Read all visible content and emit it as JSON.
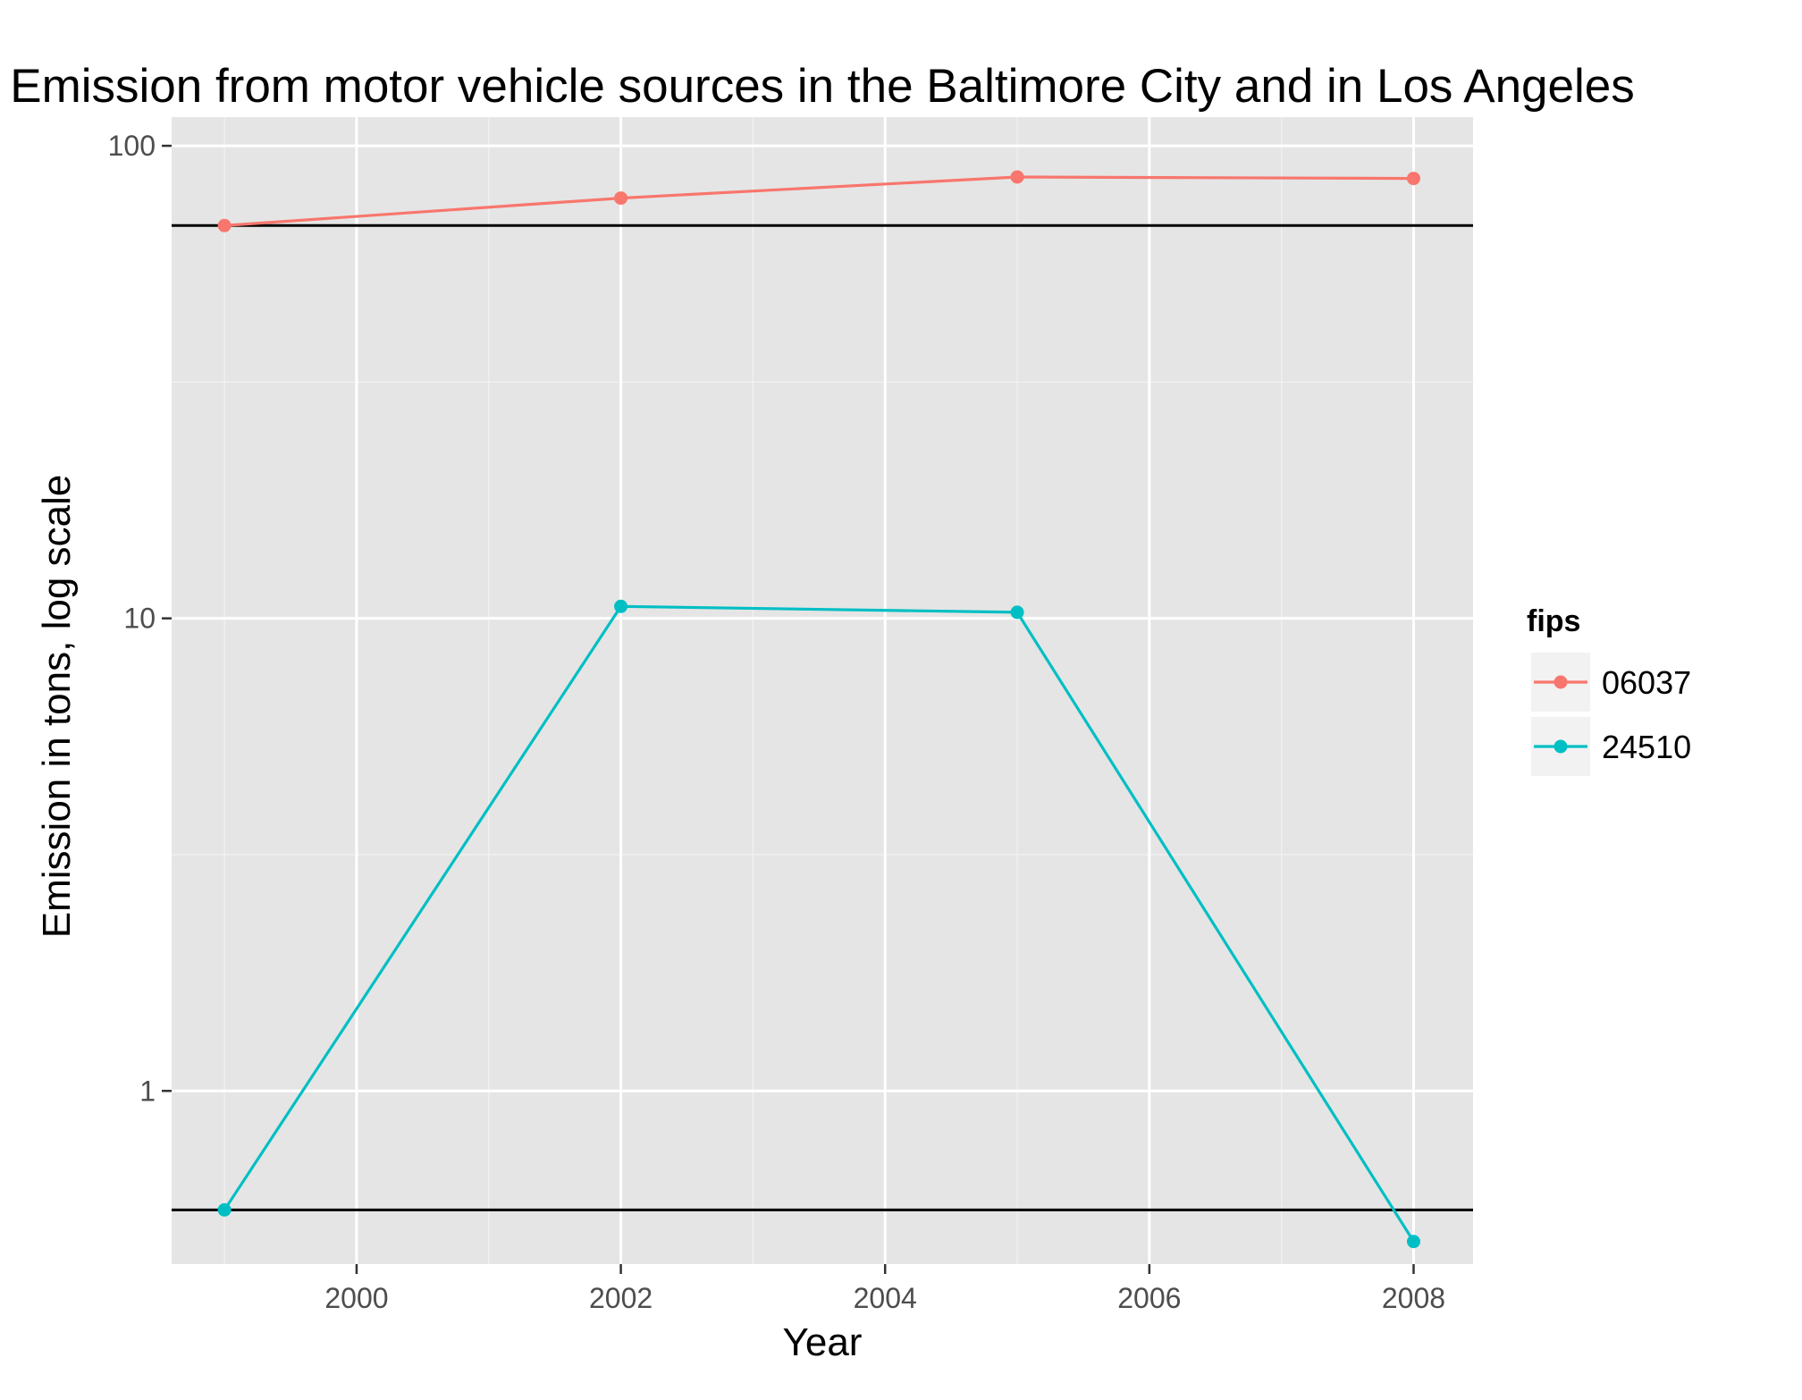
{
  "chart_data": {
    "type": "line",
    "title": "Emission from motor vehicle sources in the Baltimore City and in Los Angeles",
    "xlabel": "Year",
    "ylabel": "Emission in tons, log scale",
    "x": [
      1999,
      2002,
      2005,
      2008
    ],
    "x_ticks": [
      2000,
      2002,
      2004,
      2006,
      2008
    ],
    "x_tick_labels": [
      "2000",
      "2002",
      "2004",
      "2006",
      "2008"
    ],
    "xlim": [
      1998.6,
      2008.45
    ],
    "y_scale": "log",
    "y_ticks": [
      1,
      10,
      100
    ],
    "y_tick_labels": [
      "1",
      "10",
      "100"
    ],
    "ylim": [
      0.43,
      115
    ],
    "grid": true,
    "legend": {
      "title": "fips",
      "position": "right",
      "entries": [
        "06037",
        "24510"
      ]
    },
    "series": [
      {
        "name": "06037",
        "color": "#f8766d",
        "values": [
          67.8,
          77.5,
          85.9,
          85.3
        ]
      },
      {
        "name": "24510",
        "color": "#00bfc4",
        "values": [
          0.56,
          10.6,
          10.3,
          0.48
        ]
      }
    ],
    "hlines": [
      67.8,
      0.56
    ],
    "hline_color": "#000000"
  }
}
